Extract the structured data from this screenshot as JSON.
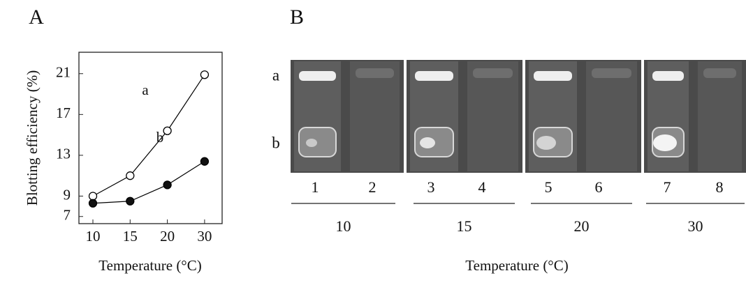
{
  "chart_data": {
    "type": "line",
    "panel_label": "A",
    "xlabel": "Temperature (°C)",
    "ylabel": "Blotting efficiency (%)",
    "categories": [
      "10",
      "15",
      "20",
      "30"
    ],
    "series": [
      {
        "name": "a",
        "color": "#000000",
        "fill": "#ffffff",
        "values": [
          9.0,
          11.0,
          15.4,
          20.9
        ]
      },
      {
        "name": "b",
        "color": "#000000",
        "fill": "#111111",
        "values": [
          8.3,
          8.5,
          10.1,
          12.4
        ]
      }
    ],
    "ylim": [
      6.3,
      23.1
    ],
    "yticks": [
      7,
      9,
      13,
      17,
      21
    ]
  },
  "gel": {
    "panel_label": "B",
    "row_labels": [
      "a",
      "b"
    ],
    "lanes": [
      "1",
      "2",
      "3",
      "4",
      "5",
      "6",
      "7",
      "8"
    ],
    "groups": [
      "10",
      "15",
      "20",
      "30"
    ],
    "xlabel": "Temperature (°C)"
  }
}
